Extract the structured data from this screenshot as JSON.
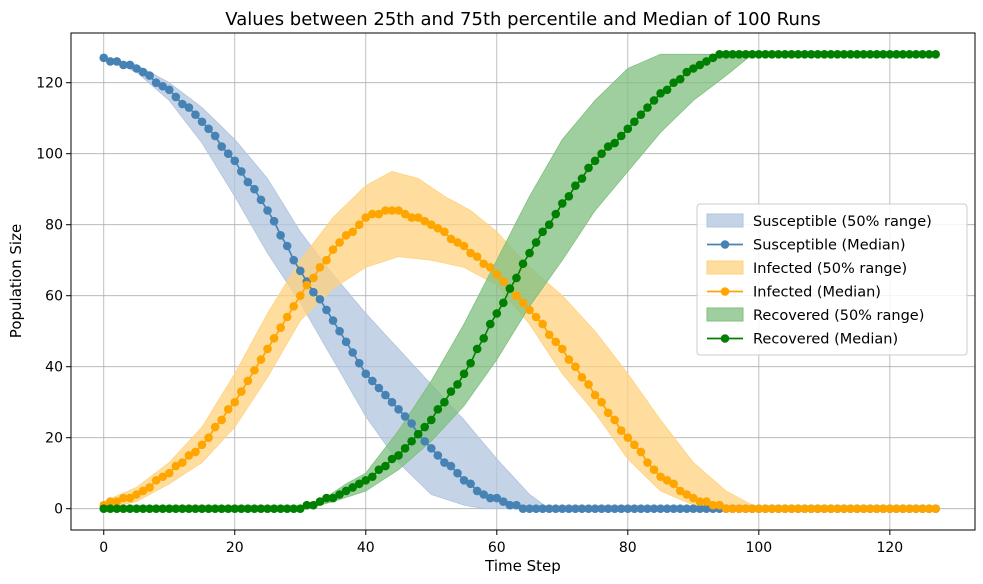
{
  "chart_data": {
    "type": "line",
    "title": "Values between 25th and 75th percentile and Median of 100 Runs",
    "xlabel": "Time Step",
    "ylabel": "Population Size",
    "xlim": [
      -5,
      133
    ],
    "ylim": [
      -6,
      134
    ],
    "xticks": [
      0,
      20,
      40,
      60,
      80,
      100,
      120
    ],
    "yticks": [
      0,
      20,
      40,
      60,
      80,
      100,
      120
    ],
    "grid": true,
    "legend_position": "center-right",
    "series": [
      {
        "name": "Susceptible",
        "median_label": "Susceptible (Median)",
        "band_label": "Susceptible (50% range)",
        "color": "#4682b4",
        "band_color": "#b0c4de",
        "x_start": 0,
        "x_end": 127,
        "median_keypoints": [
          [
            0,
            127
          ],
          [
            5,
            124
          ],
          [
            10,
            118
          ],
          [
            15,
            109
          ],
          [
            20,
            98
          ],
          [
            25,
            84
          ],
          [
            30,
            67
          ],
          [
            35,
            53
          ],
          [
            40,
            38
          ],
          [
            45,
            28
          ],
          [
            50,
            17
          ],
          [
            55,
            8
          ],
          [
            58,
            4
          ],
          [
            62,
            1
          ],
          [
            65,
            0
          ],
          [
            127,
            0
          ]
        ],
        "lower_keypoints": [
          [
            0,
            127
          ],
          [
            5,
            123
          ],
          [
            10,
            115
          ],
          [
            15,
            103
          ],
          [
            20,
            88
          ],
          [
            25,
            72
          ],
          [
            30,
            58
          ],
          [
            35,
            42
          ],
          [
            40,
            26
          ],
          [
            45,
            13
          ],
          [
            50,
            4
          ],
          [
            55,
            1
          ],
          [
            58,
            0
          ],
          [
            127,
            0
          ]
        ],
        "upper_keypoints": [
          [
            0,
            127
          ],
          [
            5,
            125
          ],
          [
            10,
            120
          ],
          [
            15,
            113
          ],
          [
            20,
            104
          ],
          [
            25,
            93
          ],
          [
            30,
            78
          ],
          [
            35,
            66
          ],
          [
            40,
            55
          ],
          [
            45,
            45
          ],
          [
            50,
            35
          ],
          [
            55,
            25
          ],
          [
            60,
            14
          ],
          [
            65,
            4
          ],
          [
            68,
            0
          ],
          [
            127,
            0
          ]
        ]
      },
      {
        "name": "Infected",
        "median_label": "Infected (Median)",
        "band_label": "Infected (50% range)",
        "color": "#ffa500",
        "band_color": "#ffd27f",
        "x_start": 0,
        "x_end": 127,
        "median_keypoints": [
          [
            0,
            1
          ],
          [
            5,
            4
          ],
          [
            10,
            10
          ],
          [
            15,
            18
          ],
          [
            20,
            30
          ],
          [
            25,
            45
          ],
          [
            30,
            60
          ],
          [
            35,
            73
          ],
          [
            40,
            82
          ],
          [
            43,
            84
          ],
          [
            45,
            84
          ],
          [
            50,
            80
          ],
          [
            55,
            74
          ],
          [
            60,
            66
          ],
          [
            65,
            56
          ],
          [
            70,
            45
          ],
          [
            75,
            32
          ],
          [
            80,
            20
          ],
          [
            85,
            9
          ],
          [
            90,
            3
          ],
          [
            93,
            1
          ],
          [
            95,
            0
          ],
          [
            127,
            0
          ]
        ],
        "lower_keypoints": [
          [
            0,
            0
          ],
          [
            5,
            2
          ],
          [
            10,
            7
          ],
          [
            15,
            13
          ],
          [
            20,
            23
          ],
          [
            25,
            37
          ],
          [
            30,
            53
          ],
          [
            35,
            62
          ],
          [
            40,
            68
          ],
          [
            45,
            71
          ],
          [
            50,
            70
          ],
          [
            55,
            68
          ],
          [
            60,
            63
          ],
          [
            65,
            52
          ],
          [
            70,
            38
          ],
          [
            75,
            27
          ],
          [
            80,
            14
          ],
          [
            85,
            5
          ],
          [
            90,
            1
          ],
          [
            92,
            0
          ],
          [
            127,
            0
          ]
        ],
        "upper_keypoints": [
          [
            0,
            2
          ],
          [
            5,
            6
          ],
          [
            10,
            13
          ],
          [
            15,
            23
          ],
          [
            20,
            38
          ],
          [
            25,
            55
          ],
          [
            30,
            70
          ],
          [
            35,
            82
          ],
          [
            40,
            91
          ],
          [
            44,
            95
          ],
          [
            48,
            93
          ],
          [
            52,
            88
          ],
          [
            56,
            84
          ],
          [
            60,
            78
          ],
          [
            65,
            68
          ],
          [
            70,
            60
          ],
          [
            75,
            50
          ],
          [
            80,
            38
          ],
          [
            85,
            25
          ],
          [
            90,
            13
          ],
          [
            95,
            5
          ],
          [
            100,
            0
          ],
          [
            127,
            0
          ]
        ]
      },
      {
        "name": "Recovered",
        "median_label": "Recovered (Median)",
        "band_label": "Recovered (50% range)",
        "color": "#008000",
        "band_color": "#7fbf7f",
        "x_start": 0,
        "x_end": 127,
        "median_keypoints": [
          [
            0,
            0
          ],
          [
            30,
            0
          ],
          [
            33,
            2
          ],
          [
            36,
            4
          ],
          [
            40,
            8
          ],
          [
            45,
            15
          ],
          [
            50,
            25
          ],
          [
            55,
            38
          ],
          [
            60,
            55
          ],
          [
            65,
            72
          ],
          [
            70,
            86
          ],
          [
            75,
            98
          ],
          [
            80,
            107
          ],
          [
            85,
            117
          ],
          [
            90,
            124
          ],
          [
            94,
            128
          ],
          [
            127,
            128
          ]
        ],
        "lower_keypoints": [
          [
            0,
            0
          ],
          [
            31,
            0
          ],
          [
            35,
            2
          ],
          [
            40,
            5
          ],
          [
            45,
            11
          ],
          [
            50,
            19
          ],
          [
            55,
            29
          ],
          [
            60,
            42
          ],
          [
            65,
            57
          ],
          [
            70,
            70
          ],
          [
            75,
            84
          ],
          [
            80,
            95
          ],
          [
            85,
            106
          ],
          [
            90,
            115
          ],
          [
            95,
            122
          ],
          [
            99,
            128
          ],
          [
            127,
            128
          ]
        ],
        "upper_keypoints": [
          [
            0,
            0
          ],
          [
            29,
            0
          ],
          [
            33,
            2
          ],
          [
            37,
            7
          ],
          [
            40,
            10
          ],
          [
            45,
            22
          ],
          [
            50,
            36
          ],
          [
            55,
            52
          ],
          [
            60,
            70
          ],
          [
            65,
            88
          ],
          [
            70,
            104
          ],
          [
            75,
            115
          ],
          [
            80,
            124
          ],
          [
            85,
            128
          ],
          [
            127,
            128
          ]
        ]
      }
    ]
  }
}
